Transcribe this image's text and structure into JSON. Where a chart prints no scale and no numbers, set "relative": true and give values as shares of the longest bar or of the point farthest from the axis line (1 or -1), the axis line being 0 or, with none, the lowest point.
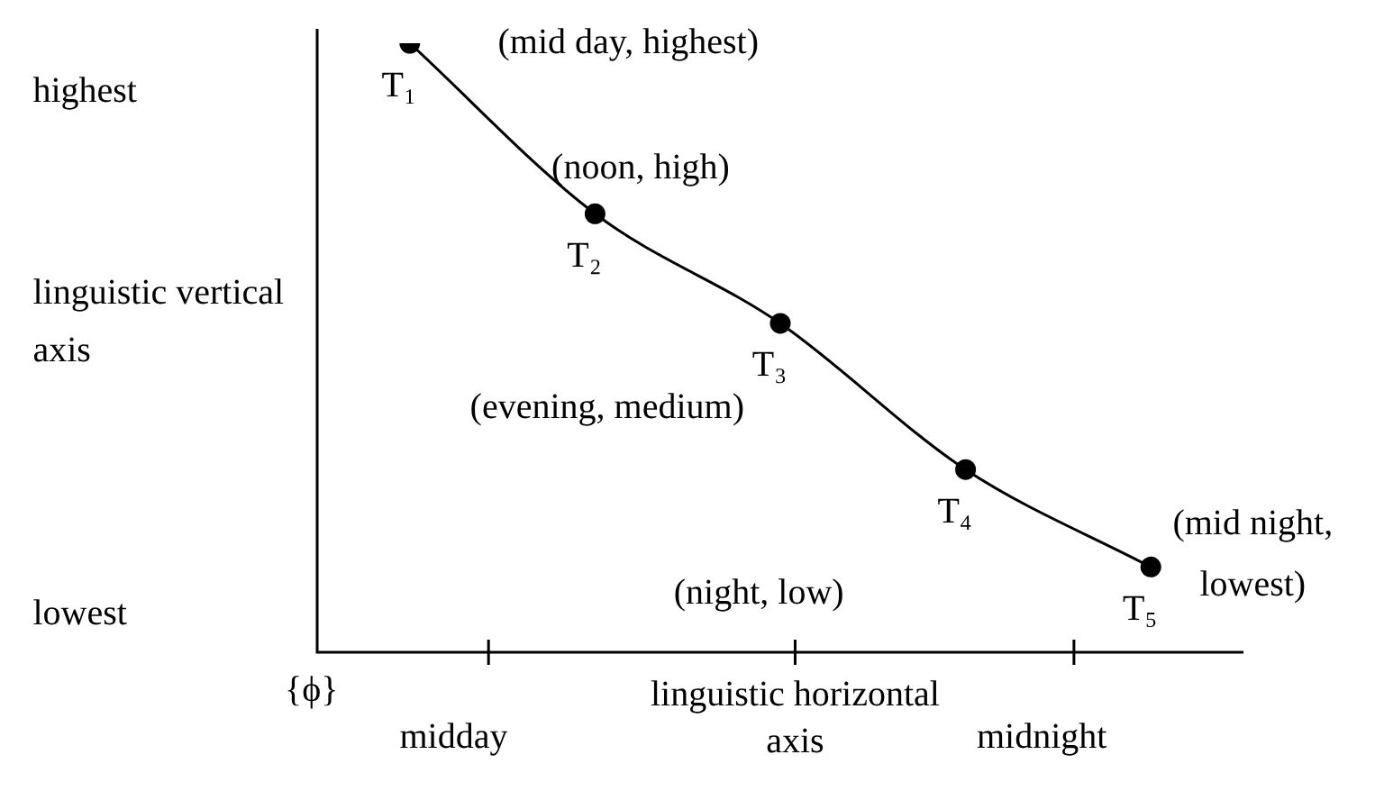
{
  "chart_data": {
    "type": "line",
    "relative": true,
    "xlabel": "linguistic horizontal axis",
    "ylabel": "linguistic vertical axis",
    "categories": [
      null,
      null,
      null,
      null,
      null
    ],
    "series": [
      {
        "color": "#000000",
        "values": [
          1,
          0.72,
          0.54,
          0.3,
          0.14
        ]
      }
    ],
    "marker": "circle",
    "line_style": "solid",
    "grid": false,
    "legend": false,
    "annotations": [
      "highest",
      "lowest",
      "(mid day, highest)",
      "(noon, high)",
      "(evening, medium)",
      "(night, low)",
      "(mid night, lowest)",
      "{ϕ}",
      "midday",
      "midnight",
      "T₁",
      "T₂",
      "T₃",
      "T₄",
      "T₅"
    ]
  }
}
